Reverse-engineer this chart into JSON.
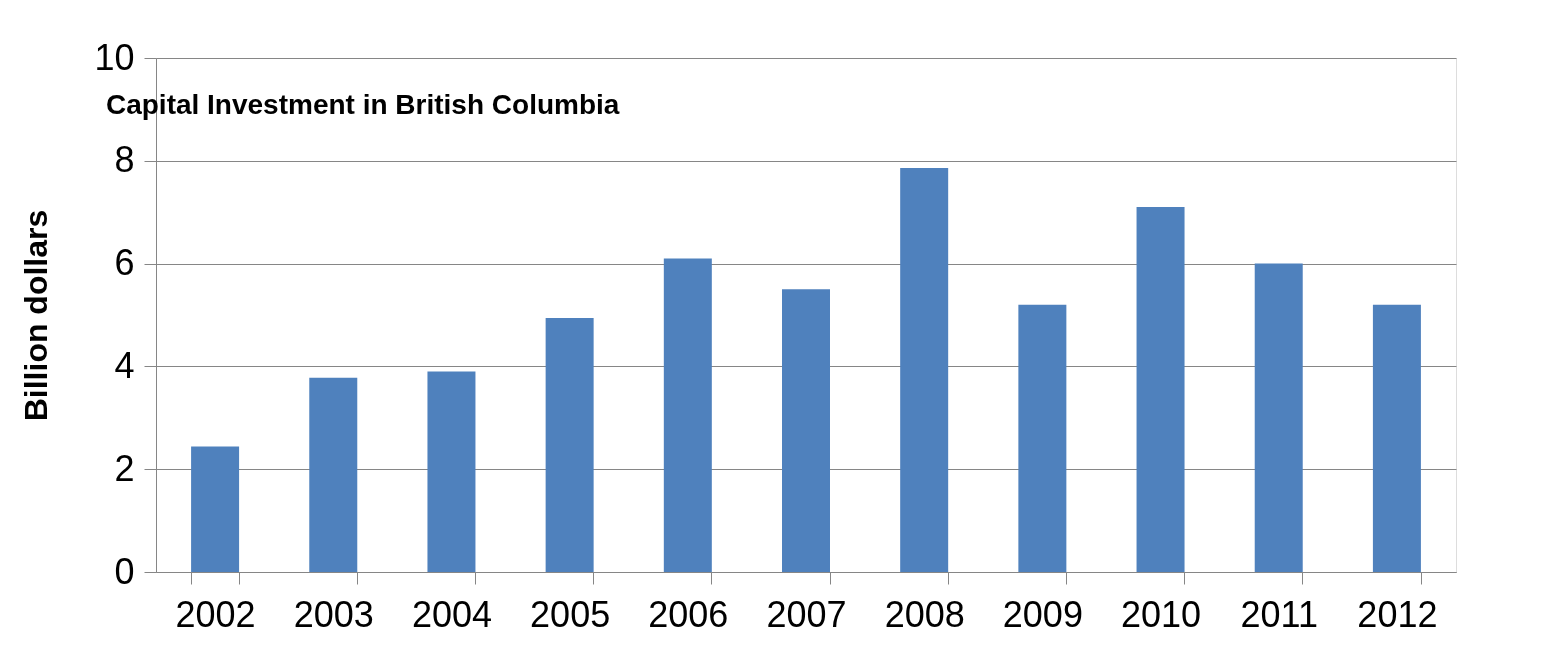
{
  "chart_data": {
    "type": "bar",
    "title": "Capital Investment in British Columbia",
    "ylabel": "Billion dollars",
    "categories": [
      "2002",
      "2003",
      "2004",
      "2005",
      "2006",
      "2007",
      "2008",
      "2009",
      "2010",
      "2011",
      "2012"
    ],
    "values": [
      2.44,
      3.78,
      3.9,
      4.94,
      6.1,
      5.5,
      7.86,
      5.2,
      7.1,
      6.0,
      5.2
    ],
    "color": "#4f81bd",
    "ylim": [
      0,
      10
    ],
    "yticks": [
      0,
      2,
      4,
      6,
      8,
      10
    ],
    "grid": "y"
  }
}
